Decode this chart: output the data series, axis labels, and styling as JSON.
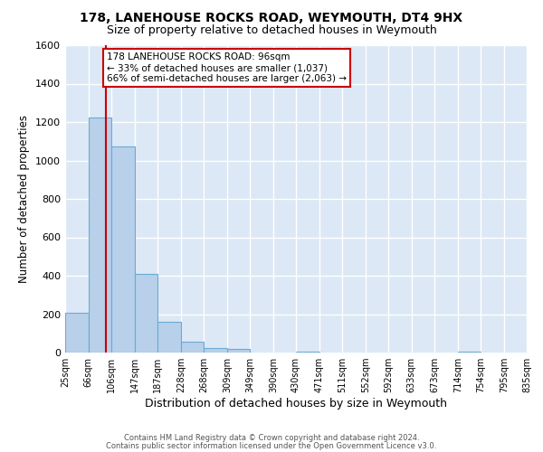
{
  "title": "178, LANEHOUSE ROCKS ROAD, WEYMOUTH, DT4 9HX",
  "subtitle": "Size of property relative to detached houses in Weymouth",
  "xlabel": "Distribution of detached houses by size in Weymouth",
  "ylabel": "Number of detached properties",
  "bin_edges": [
    25,
    66,
    106,
    147,
    187,
    228,
    268,
    309,
    349,
    390,
    430,
    471,
    511,
    552,
    592,
    633,
    673,
    714,
    754,
    795,
    835
  ],
  "bar_heights": [
    205,
    1225,
    1075,
    410,
    160,
    55,
    25,
    18,
    0,
    0,
    5,
    0,
    0,
    0,
    0,
    0,
    0,
    5,
    0,
    0
  ],
  "bar_color": "#b8d0ea",
  "bar_edge_color": "#6aaad4",
  "property_line_x": 96,
  "property_line_color": "#cc0000",
  "ylim": [
    0,
    1600
  ],
  "yticks": [
    0,
    200,
    400,
    600,
    800,
    1000,
    1200,
    1400,
    1600
  ],
  "annotation_text": "178 LANEHOUSE ROCKS ROAD: 96sqm\n← 33% of detached houses are smaller (1,037)\n66% of semi-detached houses are larger (2,063) →",
  "annotation_box_color": "#ffffff",
  "annotation_box_edge_color": "#cc0000",
  "footer_line1": "Contains HM Land Registry data © Crown copyright and database right 2024.",
  "footer_line2": "Contains public sector information licensed under the Open Government Licence v3.0.",
  "plot_bg_color": "#dce8f5",
  "grid_color": "#ffffff",
  "tick_labels": [
    "25sqm",
    "66sqm",
    "106sqm",
    "147sqm",
    "187sqm",
    "228sqm",
    "268sqm",
    "309sqm",
    "349sqm",
    "390sqm",
    "430sqm",
    "471sqm",
    "511sqm",
    "552sqm",
    "592sqm",
    "633sqm",
    "673sqm",
    "714sqm",
    "754sqm",
    "795sqm",
    "835sqm"
  ]
}
